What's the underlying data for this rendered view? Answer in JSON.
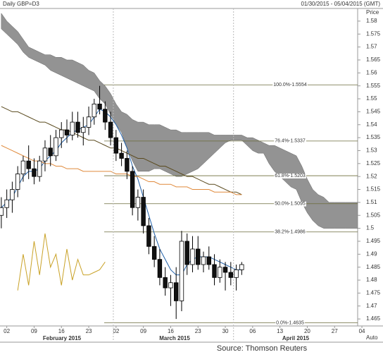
{
  "chart_data": {
    "type": "candlestick",
    "title": "Daily GBP=D3",
    "subtitle": "01/30/2015 - 05/04/2015 (GMT)",
    "y_axis_label": "Price",
    "scale_button": "Auto",
    "source": "Source: Thomson Reuters",
    "months": [
      "February 2015",
      "March 2015",
      "April 2015"
    ],
    "categories": [
      null,
      "02",
      null,
      null,
      null,
      null,
      "09",
      null,
      null,
      null,
      null,
      "16",
      null,
      null,
      null,
      null,
      "23",
      null,
      null,
      null,
      null,
      "02",
      null,
      null,
      null,
      null,
      "09",
      null,
      null,
      null,
      null,
      "16",
      null,
      null,
      null,
      null,
      "23",
      null,
      null,
      null,
      null,
      "30",
      null,
      null,
      null,
      null,
      "06",
      null,
      null,
      null,
      null,
      "13",
      null,
      null,
      null,
      null,
      "20",
      null,
      null,
      null,
      null,
      "27",
      null,
      null,
      null,
      null,
      "04"
    ],
    "ylim": [
      1.4623,
      1.5827
    ],
    "yticks": [
      1.465,
      1.47,
      1.475,
      1.48,
      1.485,
      1.49,
      1.495,
      1.5,
      1.505,
      1.51,
      1.515,
      1.52,
      1.525,
      1.53,
      1.535,
      1.54,
      1.545,
      1.55,
      1.555,
      1.56,
      1.565,
      1.57,
      1.575,
      1.58
    ],
    "open": [
      1.505,
      1.508,
      1.511,
      1.515,
      1.521,
      1.526,
      1.523,
      1.52,
      1.526,
      1.531,
      1.528,
      1.535,
      1.538,
      1.536,
      1.541,
      1.537,
      1.539,
      1.543,
      1.548,
      1.546,
      1.541,
      1.535,
      1.529,
      1.527,
      1.522,
      1.508,
      1.512,
      1.501,
      1.493,
      1.488,
      1.481,
      1.477,
      1.479,
      1.472,
      1.495,
      1.486,
      1.492,
      1.486,
      1.489,
      1.486,
      1.481,
      1.485,
      1.483,
      1.481,
      1.484,
      null,
      null,
      null,
      null,
      null,
      null,
      null,
      null,
      null,
      null,
      null,
      null,
      null,
      null,
      null,
      null,
      null,
      null,
      null,
      null,
      null,
      null
    ],
    "high": [
      1.512,
      1.515,
      1.518,
      1.524,
      1.528,
      1.532,
      1.527,
      1.528,
      1.534,
      1.536,
      1.538,
      1.541,
      1.542,
      1.545,
      1.545,
      1.543,
      1.547,
      1.55,
      1.555,
      1.549,
      1.545,
      1.538,
      1.533,
      1.53,
      1.524,
      1.515,
      1.515,
      1.504,
      1.497,
      1.492,
      1.485,
      1.482,
      1.485,
      1.499,
      1.498,
      1.497,
      1.497,
      1.491,
      1.493,
      1.49,
      1.488,
      1.487,
      1.487,
      1.486,
      1.487,
      null,
      null,
      null,
      null,
      null,
      null,
      null,
      null,
      null,
      null,
      null,
      null,
      null,
      null,
      null,
      null,
      null,
      null,
      null,
      null,
      null,
      null
    ],
    "low": [
      1.5,
      1.504,
      1.506,
      1.512,
      1.518,
      1.519,
      1.517,
      1.518,
      1.522,
      1.524,
      1.526,
      1.531,
      1.533,
      1.534,
      1.535,
      1.532,
      1.536,
      1.54,
      1.544,
      1.538,
      1.532,
      1.526,
      1.524,
      1.519,
      1.505,
      1.503,
      1.498,
      1.49,
      1.485,
      1.478,
      1.474,
      1.47,
      1.465,
      1.468,
      1.482,
      1.483,
      1.484,
      1.483,
      1.484,
      1.478,
      1.479,
      1.476,
      1.478,
      1.476,
      1.482,
      null,
      null,
      null,
      null,
      null,
      null,
      null,
      null,
      null,
      null,
      null,
      null,
      null,
      null,
      null,
      null,
      null,
      null,
      null,
      null,
      null,
      null
    ],
    "close": [
      1.508,
      1.511,
      1.515,
      1.521,
      1.526,
      1.523,
      1.52,
      1.526,
      1.531,
      1.528,
      1.535,
      1.538,
      1.536,
      1.541,
      1.537,
      1.539,
      1.543,
      1.548,
      1.546,
      1.541,
      1.535,
      1.529,
      1.527,
      1.522,
      1.508,
      1.512,
      1.501,
      1.493,
      1.488,
      1.481,
      1.477,
      1.479,
      1.472,
      1.495,
      1.486,
      1.492,
      1.486,
      1.489,
      1.486,
      1.481,
      1.485,
      1.483,
      1.481,
      1.484,
      1.486,
      null,
      null,
      null,
      null,
      null,
      null,
      null,
      null,
      null,
      null,
      null,
      null,
      null,
      null,
      null,
      null,
      null,
      null,
      null,
      null,
      null,
      null
    ],
    "cloud": {
      "color": "#808080",
      "upper": [
        1.583,
        1.58,
        1.578,
        1.576,
        1.573,
        1.57,
        1.569,
        1.568,
        1.567,
        1.567,
        1.566,
        1.566,
        1.565,
        1.565,
        1.564,
        1.563,
        1.561,
        1.56,
        1.557,
        1.555,
        1.552,
        1.548,
        1.545,
        1.544,
        1.542,
        1.541,
        1.541,
        1.54,
        1.54,
        1.54,
        1.539,
        1.538,
        1.538,
        1.537,
        1.537,
        1.537,
        1.537,
        1.537,
        1.537,
        1.536,
        1.536,
        1.536,
        1.536,
        1.536,
        1.536,
        1.535,
        1.535,
        1.534,
        1.533,
        1.532,
        1.532,
        1.531,
        1.53,
        1.529,
        1.528,
        1.524,
        1.519,
        1.515,
        1.513,
        1.512,
        1.51,
        1.51,
        1.51,
        1.51,
        1.51,
        1.51,
        1.51
      ],
      "lower": [
        1.577,
        1.575,
        1.573,
        1.571,
        1.568,
        1.566,
        1.565,
        1.564,
        1.563,
        1.561,
        1.56,
        1.559,
        1.558,
        1.557,
        1.556,
        1.555,
        1.554,
        1.553,
        1.55,
        1.548,
        1.544,
        1.54,
        1.537,
        1.531,
        1.526,
        1.522,
        1.522,
        1.522,
        1.523,
        1.523,
        1.522,
        1.521,
        1.52,
        1.52,
        1.521,
        1.522,
        1.523,
        1.525,
        1.527,
        1.529,
        1.531,
        1.533,
        1.534,
        1.534,
        1.534,
        1.532,
        1.53,
        1.529,
        1.529,
        1.525,
        1.522,
        1.52,
        1.518,
        1.516,
        1.515,
        1.51,
        1.506,
        1.503,
        1.501,
        1.5,
        1.5,
        1.5,
        1.5,
        1.5,
        1.5,
        1.5,
        1.5
      ]
    },
    "lines": [
      {
        "color": "#1f5fa8",
        "values": [
          1.508,
          1.51,
          1.512,
          1.516,
          1.52,
          1.522,
          1.522,
          1.523,
          1.526,
          1.528,
          1.53,
          1.533,
          1.535,
          1.537,
          1.538,
          1.539,
          1.54,
          1.543,
          1.546,
          1.545,
          1.543,
          1.54,
          1.536,
          1.531,
          1.524,
          1.519,
          1.512,
          1.505,
          1.498,
          1.492,
          1.488,
          1.484,
          1.482,
          1.482,
          1.486,
          1.488,
          1.489,
          1.489,
          1.489,
          1.488,
          1.487,
          1.486,
          1.485,
          1.484,
          1.484,
          null,
          null,
          null,
          null,
          null,
          null,
          null,
          null,
          null,
          null,
          null,
          null,
          null,
          null,
          null,
          null,
          null,
          null,
          null,
          null,
          null,
          null
        ]
      },
      {
        "color": "#5a4a1e",
        "values": [
          1.547,
          1.546,
          1.545,
          1.545,
          1.544,
          1.543,
          1.542,
          1.541,
          1.541,
          1.54,
          1.539,
          1.538,
          1.538,
          1.537,
          1.536,
          1.535,
          1.534,
          1.534,
          1.533,
          1.532,
          1.531,
          1.531,
          1.53,
          1.529,
          1.528,
          1.527,
          1.527,
          1.526,
          1.525,
          1.524,
          1.524,
          1.523,
          1.522,
          1.521,
          1.52,
          1.52,
          1.519,
          1.518,
          1.517,
          1.517,
          1.516,
          1.515,
          1.514,
          1.514,
          1.513,
          null,
          null,
          null,
          null,
          null,
          null,
          null,
          null,
          null,
          null,
          null,
          null,
          null,
          null,
          null,
          null,
          null,
          null,
          null,
          null,
          null,
          null
        ]
      },
      {
        "color": "#e08a3c",
        "values": [
          1.532,
          1.531,
          1.53,
          1.529,
          1.528,
          1.527,
          1.526,
          1.526,
          1.525,
          1.525,
          1.524,
          1.524,
          1.523,
          1.523,
          1.523,
          1.522,
          1.522,
          1.522,
          1.522,
          1.522,
          1.522,
          1.521,
          1.521,
          1.521,
          1.52,
          1.52,
          1.519,
          1.518,
          1.518,
          1.517,
          1.517,
          1.517,
          1.516,
          1.516,
          1.516,
          1.515,
          1.515,
          1.515,
          1.515,
          1.514,
          1.514,
          1.514,
          1.514,
          1.513,
          1.513,
          null,
          null,
          null,
          null,
          null,
          null,
          null,
          null,
          null,
          null,
          null,
          null,
          null,
          null,
          null,
          null,
          null,
          null,
          null,
          null,
          null,
          null
        ]
      },
      {
        "color": "#c9a227",
        "values": [
          null,
          null,
          null,
          1.476,
          1.49,
          1.478,
          1.495,
          1.482,
          1.498,
          1.485,
          1.49,
          1.478,
          1.492,
          1.48,
          1.488,
          1.482,
          1.482,
          1.483,
          1.484,
          1.487,
          null,
          null,
          null,
          null,
          null,
          null,
          null,
          null,
          null,
          null,
          null,
          null,
          null,
          null,
          null,
          null,
          null,
          null,
          null,
          null,
          null,
          null,
          null,
          null,
          null,
          null,
          null,
          null,
          null,
          null,
          null,
          null,
          null,
          null,
          null,
          null,
          null,
          null,
          null,
          null,
          null,
          null,
          null,
          null,
          null,
          null,
          null
        ]
      }
    ],
    "fibonacci": {
      "color": "#6b6b3a",
      "levels": [
        {
          "value": 1.5554,
          "label": "100.0%-1.5554"
        },
        {
          "value": 1.5337,
          "label": "76.4%-1.5337"
        },
        {
          "value": 1.5203,
          "label": "61.8%-1.5203"
        },
        {
          "value": 1.5095,
          "label": "50.0%-1.5095"
        },
        {
          "value": 1.4986,
          "label": "38.2%-1.4986"
        },
        {
          "value": 1.4635,
          "label": "0.0%-1.4635"
        }
      ]
    }
  }
}
